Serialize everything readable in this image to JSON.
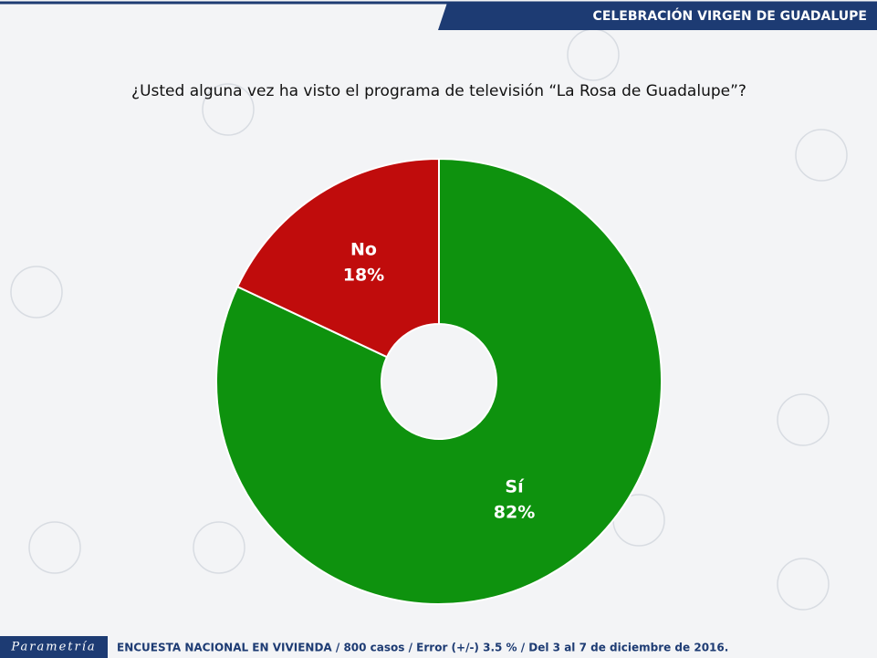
{
  "header": {
    "title": "CELEBRACIÓN VIRGEN DE GUADALUPE"
  },
  "chart_data": {
    "type": "donut",
    "title": "¿Usted alguna vez ha visto el programa de televisión “La Rosa de Guadalupe”?",
    "categories": [
      "Sí",
      "No"
    ],
    "values": [
      82,
      18
    ],
    "value_labels": [
      "82%",
      "18%"
    ],
    "colors": [
      "#0e920e",
      "#c00c0c"
    ]
  },
  "footer": {
    "logo": "Parametría",
    "note": "ENCUESTA NACIONAL EN VIVIENDA / 800 casos / Error (+/-) 3.5 % / Del 3 al 7 de diciembre de 2016."
  }
}
